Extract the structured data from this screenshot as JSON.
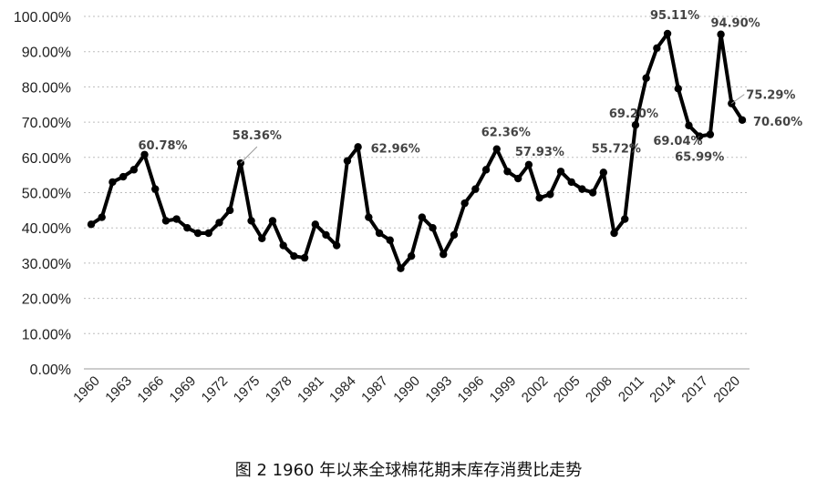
{
  "chart_data": {
    "type": "line",
    "title": "",
    "xlabel": "",
    "ylabel": "",
    "ylim": [
      0,
      100
    ],
    "y_ticks": [
      "0.00%",
      "10.00%",
      "20.00%",
      "30.00%",
      "40.00%",
      "50.00%",
      "60.00%",
      "70.00%",
      "80.00%",
      "90.00%",
      "100.00%"
    ],
    "x_ticks": [
      "1960",
      "1963",
      "1966",
      "1969",
      "1972",
      "1975",
      "1978",
      "1981",
      "1984",
      "1987",
      "1990",
      "1993",
      "1996",
      "1999",
      "2002",
      "2005",
      "2008",
      "2011",
      "2014",
      "2017",
      "2020"
    ],
    "grid": "horizontal dotted",
    "line_color": "#000000",
    "x": [
      1960,
      1961,
      1962,
      1963,
      1964,
      1965,
      1966,
      1967,
      1968,
      1969,
      1970,
      1971,
      1972,
      1973,
      1974,
      1975,
      1976,
      1977,
      1978,
      1979,
      1980,
      1981,
      1982,
      1983,
      1984,
      1985,
      1986,
      1987,
      1988,
      1989,
      1990,
      1991,
      1992,
      1993,
      1994,
      1995,
      1996,
      1997,
      1998,
      1999,
      2000,
      2001,
      2002,
      2003,
      2004,
      2005,
      2006,
      2007,
      2008,
      2009,
      2010,
      2011,
      2012,
      2013,
      2014,
      2015,
      2016,
      2017,
      2018,
      2019,
      2020,
      2021
    ],
    "values": [
      41.0,
      43.0,
      53.0,
      54.5,
      56.5,
      60.78,
      51.0,
      42.0,
      42.5,
      40.0,
      38.5,
      38.5,
      41.5,
      45.0,
      58.36,
      42.0,
      37.0,
      42.0,
      35.0,
      32.0,
      31.5,
      41.0,
      38.0,
      35.0,
      59.0,
      62.96,
      43.0,
      38.5,
      36.5,
      28.5,
      32.0,
      43.0,
      40.0,
      32.5,
      38.0,
      47.0,
      51.0,
      56.5,
      62.36,
      56.0,
      54.0,
      57.93,
      48.5,
      49.5,
      56.0,
      53.0,
      51.0,
      50.0,
      55.72,
      38.5,
      42.5,
      69.2,
      82.5,
      91.0,
      95.11,
      79.5,
      69.04,
      65.99,
      66.5,
      94.9,
      75.29,
      70.6
    ],
    "data_labels": [
      {
        "x": 1965,
        "text": "60.78%"
      },
      {
        "x": 1974,
        "text": "58.36%"
      },
      {
        "x": 1985,
        "text": "62.96%"
      },
      {
        "x": 1998,
        "text": "62.36%"
      },
      {
        "x": 2001,
        "text": "57.93%"
      },
      {
        "x": 2008,
        "text": "55.72%"
      },
      {
        "x": 2011,
        "text": "69.20%"
      },
      {
        "x": 2014,
        "text": "95.11%"
      },
      {
        "x": 2016,
        "text": "69.04%"
      },
      {
        "x": 2017,
        "text": "65.99%"
      },
      {
        "x": 2019,
        "text": "94.90%"
      },
      {
        "x": 2020,
        "text": "75.29%"
      },
      {
        "x": 2021,
        "text": "70.60%"
      }
    ]
  },
  "caption": "图 2 1960 年以来全球棉花期末库存消费比走势"
}
